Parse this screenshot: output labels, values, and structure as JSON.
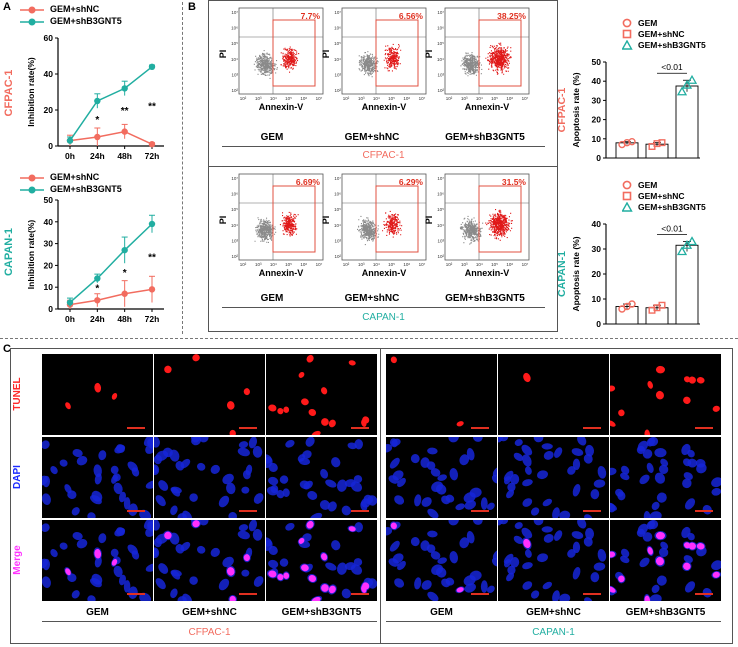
{
  "panels": {
    "a": "A",
    "b": "B",
    "c": "C"
  },
  "colors": {
    "nc": "#f26c5f",
    "sh": "#21aea1",
    "tunel": "#ff2a2a",
    "dapi": "#1c2cff",
    "merge": "#ff33ff",
    "flow_dot": "#e01818",
    "scale": "#e03020"
  },
  "panel_a": {
    "ylabel": "Inhibition rate(%)",
    "legend": [
      "GEM+shNC",
      "GEM+shB3GNT5"
    ],
    "charts": [
      {
        "row_label": "CFPAC-1"
      },
      {
        "row_label": "CAPAN-1"
      }
    ]
  },
  "flow": {
    "pi": "PI",
    "annexin": "Annexin-V",
    "tick_y": [
      "10⁷",
      "10⁶",
      "10⁵",
      "10⁴",
      "10³",
      "10²"
    ],
    "tick_x": [
      "10²",
      "10³",
      "10⁴",
      "10⁵",
      "10⁶",
      "10⁷"
    ],
    "groups": [
      "GEM",
      "GEM+shNC",
      "GEM+shB3GNT5"
    ],
    "cfpac_percents": [
      "7.7%",
      "6.56%",
      "38.25%"
    ],
    "capan_percents": [
      "6.69%",
      "6.29%",
      "31.5%"
    ],
    "cfpac_label": "CFPAC-1",
    "capan_label": "CAPAN-1"
  },
  "apoptosis": {
    "ylabel": "Apoptosis rate (%)",
    "legend": [
      "GEM",
      "GEM+shNC",
      "GEM+shB3GNT5"
    ],
    "pvalue": "<0.01",
    "cfpac_label": "CFPAC-1",
    "capan_label": "CAPAN-1"
  },
  "panel_c": {
    "rows": [
      "TUNEL",
      "DAPI",
      "Merge"
    ],
    "groups": [
      "GEM",
      "GEM+shNC",
      "GEM+shB3GNT5"
    ],
    "cfpac_label": "CFPAC-1",
    "capan_label": "CAPAN-1"
  },
  "chart_data": [
    {
      "type": "line",
      "title": "",
      "row_label": "CFPAC-1",
      "xlabel": "",
      "ylabel": "Inhibition rate(%)",
      "categories": [
        "0h",
        "24h",
        "48h",
        "72h"
      ],
      "ylim": [
        0,
        60
      ],
      "yticks": [
        0,
        20,
        40,
        60
      ],
      "series": [
        {
          "name": "GEM+shNC",
          "values": [
            3,
            5,
            8,
            1
          ],
          "errors": [
            3,
            5,
            4,
            0.8
          ]
        },
        {
          "name": "GEM+shB3GNT5",
          "values": [
            3,
            25,
            32,
            44
          ],
          "errors": [
            2,
            4,
            4,
            1
          ]
        }
      ],
      "annotations": [
        "",
        "*",
        "**",
        "**"
      ]
    },
    {
      "type": "line",
      "title": "",
      "row_label": "CAPAN-1",
      "xlabel": "",
      "ylabel": "Inhibition rate(%)",
      "categories": [
        "0h",
        "24h",
        "48h",
        "72h"
      ],
      "ylim": [
        0,
        50
      ],
      "yticks": [
        0,
        10,
        20,
        30,
        40,
        50
      ],
      "series": [
        {
          "name": "GEM+shNC",
          "values": [
            2,
            4,
            7,
            9
          ],
          "errors": [
            2,
            3,
            6,
            6
          ]
        },
        {
          "name": "GEM+shB3GNT5",
          "values": [
            3,
            14,
            27,
            39
          ],
          "errors": [
            2,
            2,
            6,
            4
          ]
        }
      ],
      "annotations": [
        "",
        "*",
        "*",
        "**"
      ]
    },
    {
      "type": "bar",
      "title": "",
      "row_label": "CFPAC-1",
      "xlabel": "",
      "ylabel": "Apoptosis rate (%)",
      "categories": [
        "GEM",
        "GEM+shNC",
        "GEM+shB3GNT5"
      ],
      "values": [
        7.9,
        7.2,
        37.5
      ],
      "points": [
        [
          7.0,
          8.0,
          8.5
        ],
        [
          6.0,
          7.5,
          8.0
        ],
        [
          34.5,
          38.0,
          40.5
        ]
      ],
      "ylim": [
        0,
        50
      ],
      "yticks": [
        0,
        10,
        20,
        30,
        40,
        50
      ],
      "comparison": "<0.01"
    },
    {
      "type": "bar",
      "title": "",
      "row_label": "CAPAN-1",
      "xlabel": "",
      "ylabel": "Apoptosis rate (%)",
      "categories": [
        "GEM",
        "GEM+shNC",
        "GEM+shB3GNT5"
      ],
      "values": [
        7.0,
        6.5,
        31.5
      ],
      "points": [
        [
          6.0,
          7.0,
          8.0
        ],
        [
          5.5,
          6.5,
          7.5
        ],
        [
          29.0,
          31.5,
          33.0
        ]
      ],
      "ylim": [
        0,
        40
      ],
      "yticks": [
        0,
        10,
        20,
        30,
        40
      ],
      "comparison": "<0.01"
    }
  ]
}
